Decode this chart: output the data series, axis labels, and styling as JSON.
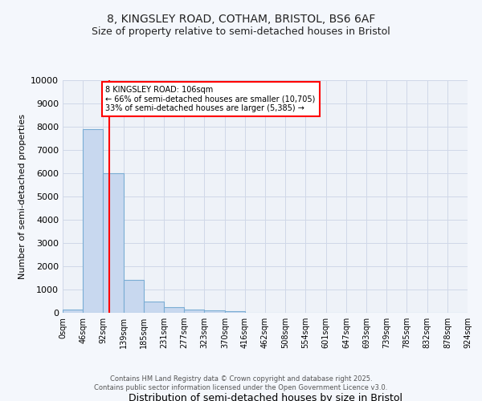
{
  "title1": "8, KINGSLEY ROAD, COTHAM, BRISTOL, BS6 6AF",
  "title2": "Size of property relative to semi-detached houses in Bristol",
  "xlabel": "Distribution of semi-detached houses by size in Bristol",
  "ylabel": "Number of semi-detached properties",
  "bar_values": [
    150,
    7900,
    6000,
    1400,
    500,
    230,
    140,
    110,
    60,
    10,
    0,
    0,
    0,
    0,
    0,
    0,
    0,
    0,
    0,
    0
  ],
  "bin_edges": [
    0,
    46,
    92,
    139,
    185,
    231,
    277,
    323,
    370,
    416,
    462,
    508,
    554,
    601,
    647,
    693,
    739,
    785,
    832,
    878,
    924
  ],
  "bin_labels": [
    "0sqm",
    "46sqm",
    "92sqm",
    "139sqm",
    "185sqm",
    "231sqm",
    "277sqm",
    "323sqm",
    "370sqm",
    "416sqm",
    "462sqm",
    "508sqm",
    "554sqm",
    "601sqm",
    "647sqm",
    "693sqm",
    "739sqm",
    "785sqm",
    "832sqm",
    "878sqm",
    "924sqm"
  ],
  "bar_color": "#c8d8ef",
  "bar_edge_color": "#7aadd4",
  "plot_bg_color": "#eef2f8",
  "red_line_x": 106,
  "property_label": "8 KINGSLEY ROAD: 106sqm",
  "annotation_line1": "← 66% of semi-detached houses are smaller (10,705)",
  "annotation_line2": "33% of semi-detached houses are larger (5,385) →",
  "ylim": [
    0,
    10000
  ],
  "yticks": [
    0,
    1000,
    2000,
    3000,
    4000,
    5000,
    6000,
    7000,
    8000,
    9000,
    10000
  ],
  "grid_color": "#d0d8e8",
  "background_color": "#f4f7fc",
  "footer1": "Contains HM Land Registry data © Crown copyright and database right 2025.",
  "footer2": "Contains public sector information licensed under the Open Government Licence v3.0."
}
